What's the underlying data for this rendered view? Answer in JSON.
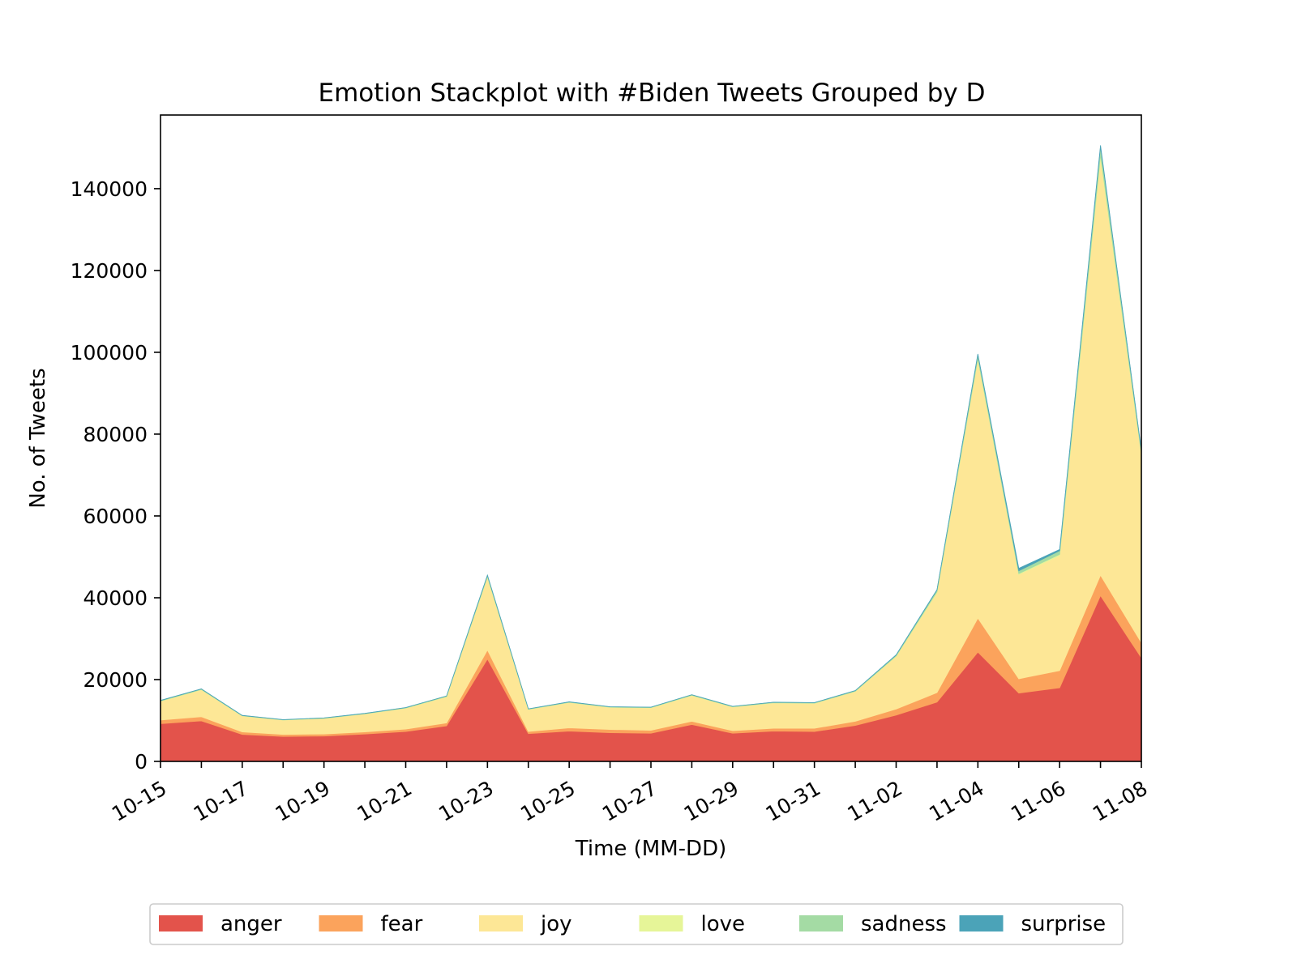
{
  "chart_data": {
    "type": "area",
    "stacked": true,
    "title": "Emotion Stackplot with #Biden Tweets Grouped by D",
    "xlabel": "Time (MM-DD)",
    "ylabel": "No. of Tweets",
    "ylim": [
      0,
      158000
    ],
    "yticks": [
      0,
      20000,
      40000,
      60000,
      80000,
      100000,
      120000,
      140000
    ],
    "x": [
      "10-15",
      "10-16",
      "10-17",
      "10-18",
      "10-19",
      "10-20",
      "10-21",
      "10-22",
      "10-23",
      "10-24",
      "10-25",
      "10-26",
      "10-27",
      "10-28",
      "10-29",
      "10-30",
      "10-31",
      "11-01",
      "11-02",
      "11-03",
      "11-04",
      "11-05",
      "11-06",
      "11-07",
      "11-08"
    ],
    "xtick_labels": [
      "10-15",
      "10-17",
      "10-19",
      "10-21",
      "10-23",
      "10-25",
      "10-27",
      "10-29",
      "10-31",
      "11-02",
      "11-04",
      "11-06",
      "11-08"
    ],
    "legend_position": "bottom-center",
    "grid": false,
    "series": [
      {
        "name": "anger",
        "color": "#e3534b",
        "values": [
          9200,
          9900,
          6600,
          6100,
          6200,
          6700,
          7300,
          8700,
          25000,
          6800,
          7400,
          7000,
          6900,
          9000,
          6900,
          7400,
          7300,
          8800,
          11300,
          14500,
          26700,
          16700,
          18000,
          40500,
          25300
        ]
      },
      {
        "name": "fear",
        "color": "#fba35c",
        "values": [
          900,
          1000,
          600,
          500,
          500,
          500,
          600,
          700,
          2200,
          500,
          800,
          800,
          700,
          800,
          600,
          700,
          800,
          1000,
          1500,
          2300,
          8300,
          3500,
          4200,
          5000,
          3700
        ]
      },
      {
        "name": "joy",
        "color": "#fde796",
        "values": [
          4600,
          6600,
          3900,
          3500,
          3800,
          4400,
          5100,
          6400,
          17800,
          5400,
          6200,
          5400,
          5500,
          6300,
          5800,
          6200,
          6100,
          7300,
          12900,
          24500,
          63200,
          25500,
          28100,
          102000,
          46000
        ]
      },
      {
        "name": "love",
        "color": "#e6f598",
        "values": [
          60,
          60,
          40,
          30,
          30,
          40,
          40,
          50,
          150,
          40,
          40,
          40,
          40,
          50,
          40,
          40,
          40,
          50,
          80,
          160,
          300,
          200,
          300,
          700,
          300
        ]
      },
      {
        "name": "sadness",
        "color": "#a4dba4",
        "values": [
          120,
          150,
          80,
          70,
          80,
          90,
          100,
          120,
          300,
          90,
          100,
          100,
          100,
          120,
          100,
          110,
          110,
          140,
          220,
          430,
          900,
          700,
          900,
          2000,
          700
        ]
      },
      {
        "name": "surprise",
        "color": "#4ba3b8",
        "values": [
          40,
          40,
          20,
          20,
          20,
          20,
          30,
          30,
          80,
          20,
          30,
          30,
          30,
          30,
          30,
          30,
          30,
          30,
          50,
          100,
          200,
          600,
          300,
          400,
          100
        ]
      }
    ]
  }
}
